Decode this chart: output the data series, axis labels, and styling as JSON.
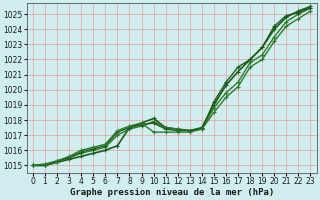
{
  "title": "Graphe pression niveau de la mer (hPa)",
  "bg_color": "#d0eef0",
  "grid_color_v": "#e8a0a0",
  "grid_color_h": "#e8a0a0",
  "xlim": [
    -0.5,
    23.5
  ],
  "ylim": [
    1014.5,
    1025.7
  ],
  "yticks": [
    1015,
    1016,
    1017,
    1018,
    1019,
    1020,
    1021,
    1022,
    1023,
    1024,
    1025
  ],
  "xticks": [
    0,
    1,
    2,
    3,
    4,
    5,
    6,
    7,
    8,
    9,
    10,
    11,
    12,
    13,
    14,
    15,
    16,
    17,
    18,
    19,
    20,
    21,
    22,
    23
  ],
  "series": [
    {
      "x": [
        0,
        1,
        2,
        3,
        4,
        5,
        6,
        7,
        8,
        9,
        10,
        11,
        12,
        13,
        14,
        15,
        16,
        17,
        18,
        19,
        20,
        21,
        22,
        23
      ],
      "y": [
        1015.0,
        1015.0,
        1015.2,
        1015.4,
        1015.6,
        1015.8,
        1016.0,
        1016.3,
        1017.5,
        1017.8,
        1018.1,
        1017.5,
        1017.4,
        1017.3,
        1017.5,
        1019.0,
        1020.3,
        1021.2,
        1022.0,
        1022.8,
        1024.0,
        1024.8,
        1025.2,
        1025.5
      ],
      "color": "#1a5c1a",
      "lw": 1.2
    },
    {
      "x": [
        0,
        1,
        2,
        3,
        4,
        5,
        6,
        7,
        8,
        9,
        10,
        11,
        12,
        13,
        14,
        15,
        16,
        17,
        18,
        19,
        20,
        21,
        22,
        23
      ],
      "y": [
        1015.0,
        1015.0,
        1015.2,
        1015.5,
        1015.8,
        1016.0,
        1016.2,
        1017.0,
        1017.4,
        1017.6,
        1017.9,
        1017.5,
        1017.4,
        1017.3,
        1017.4,
        1018.8,
        1019.8,
        1020.5,
        1021.8,
        1022.3,
        1023.5,
        1024.5,
        1025.0,
        1025.4
      ],
      "color": "#2d7a2d",
      "lw": 1.0
    },
    {
      "x": [
        0,
        1,
        2,
        3,
        4,
        5,
        6,
        7,
        8,
        9,
        10,
        11,
        12,
        13,
        14,
        15,
        16,
        17,
        18,
        19,
        20,
        21,
        22,
        23
      ],
      "y": [
        1015.0,
        1015.0,
        1015.3,
        1015.5,
        1015.9,
        1016.1,
        1016.3,
        1017.2,
        1017.5,
        1017.7,
        1017.8,
        1017.4,
        1017.3,
        1017.3,
        1017.4,
        1019.2,
        1020.5,
        1021.5,
        1022.0,
        1022.8,
        1024.2,
        1024.9,
        1025.1,
        1025.4
      ],
      "color": "#1a5c1a",
      "lw": 1.0
    },
    {
      "x": [
        0,
        1,
        2,
        3,
        4,
        5,
        6,
        7,
        8,
        9,
        10,
        11,
        12,
        13,
        14,
        15,
        16,
        17,
        18,
        19,
        20,
        21,
        22,
        23
      ],
      "y": [
        1015.0,
        1015.1,
        1015.3,
        1015.6,
        1016.0,
        1016.2,
        1016.4,
        1017.3,
        1017.6,
        1017.8,
        1017.2,
        1017.2,
        1017.2,
        1017.2,
        1017.4,
        1018.5,
        1019.5,
        1020.2,
        1021.5,
        1022.0,
        1023.2,
        1024.2,
        1024.7,
        1025.2
      ],
      "color": "#2d7a2d",
      "lw": 1.0
    }
  ],
  "marker": "+",
  "markersize": 3,
  "markeredgewidth": 0.8,
  "tick_fontsize": 5.5,
  "xlabel_fontsize": 6.5,
  "spine_color": "#555555"
}
